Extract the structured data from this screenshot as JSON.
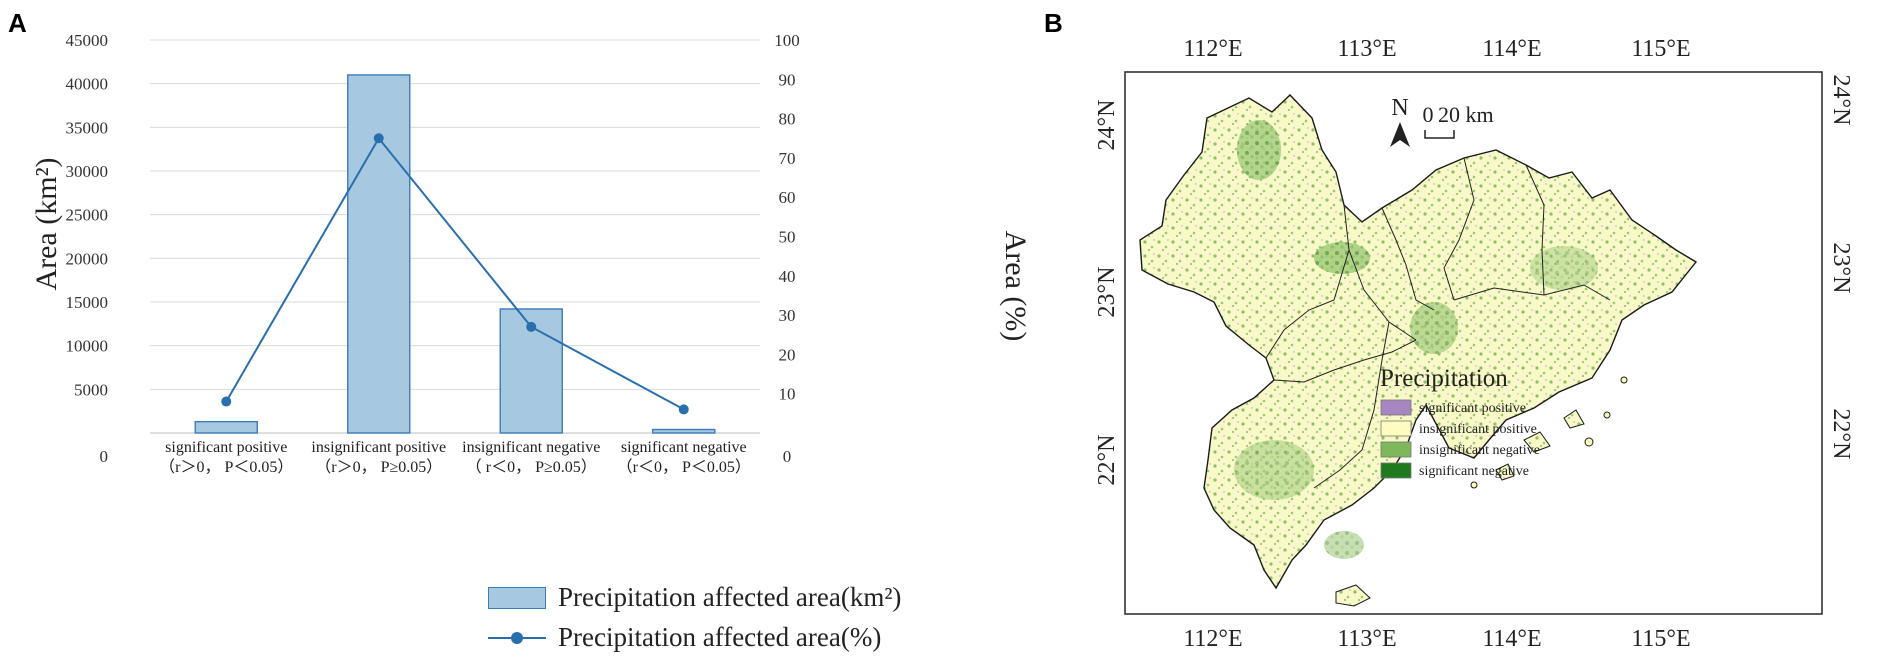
{
  "panels": {
    "a_label": "A",
    "b_label": "B"
  },
  "chart_data": [
    {
      "type": "bar",
      "panel": "A",
      "categories": [
        {
          "line1": "significant positive",
          "line2": "（r＞0， P＜0.05）"
        },
        {
          "line1": "insignificant positive",
          "line2": "（r＞0， P≥0.05）"
        },
        {
          "line1": "insignificant negative",
          "line2": "（ r＜0， P≥0.05）"
        },
        {
          "line1": "significant negative",
          "line2": "（r＜0， P＜0.05）"
        }
      ],
      "series": [
        {
          "name": "Precipitation affected area(km²)",
          "kind": "bar",
          "axis": "left",
          "values": [
            1300,
            41000,
            14200,
            400
          ]
        },
        {
          "name": "Precipitation affected area(%)",
          "kind": "line",
          "axis": "right",
          "values": [
            8,
            75,
            27,
            6
          ]
        }
      ],
      "ylabel_left": "Area (km²)",
      "ylabel_right": "Area (%)",
      "left_ticks": [
        "0",
        "5000",
        "10000",
        "15000",
        "20000",
        "25000",
        "30000",
        "35000",
        "40000",
        "45000"
      ],
      "right_ticks": [
        "0",
        "10",
        "20",
        "30",
        "40",
        "50",
        "60",
        "70",
        "80",
        "90",
        "100"
      ],
      "ylim_left": [
        0,
        45000
      ],
      "ylim_right": [
        0,
        100
      ],
      "grid": true,
      "colors": {
        "bar_fill": "#a6c8e0",
        "bar_stroke": "#3b7bbd",
        "line": "#2a6fad",
        "grid": "#d9d9d9"
      }
    }
  ],
  "map": {
    "top_lon_labels": [
      "112°E",
      "113°E",
      "114°E",
      "115°E"
    ],
    "bottom_lon_labels": [
      "112°E",
      "113°E",
      "114°E",
      "115°E"
    ],
    "left_lat_labels": [
      "24°N",
      "23°N",
      "22°N"
    ],
    "right_lat_labels": [
      "24°N",
      "23°N",
      "22°N"
    ],
    "north_label": "N",
    "scale_zero": "0",
    "scale_label": "20 km",
    "legend": {
      "title": "Precipitation",
      "items": [
        {
          "label": "significant positive",
          "color": "#a886c1"
        },
        {
          "label": "insignificant positive",
          "color": "#fdfdc0"
        },
        {
          "label": "insignificant negative",
          "color": "#7fb85a"
        },
        {
          "label": "significant negative",
          "color": "#1f7a1f"
        }
      ]
    }
  }
}
